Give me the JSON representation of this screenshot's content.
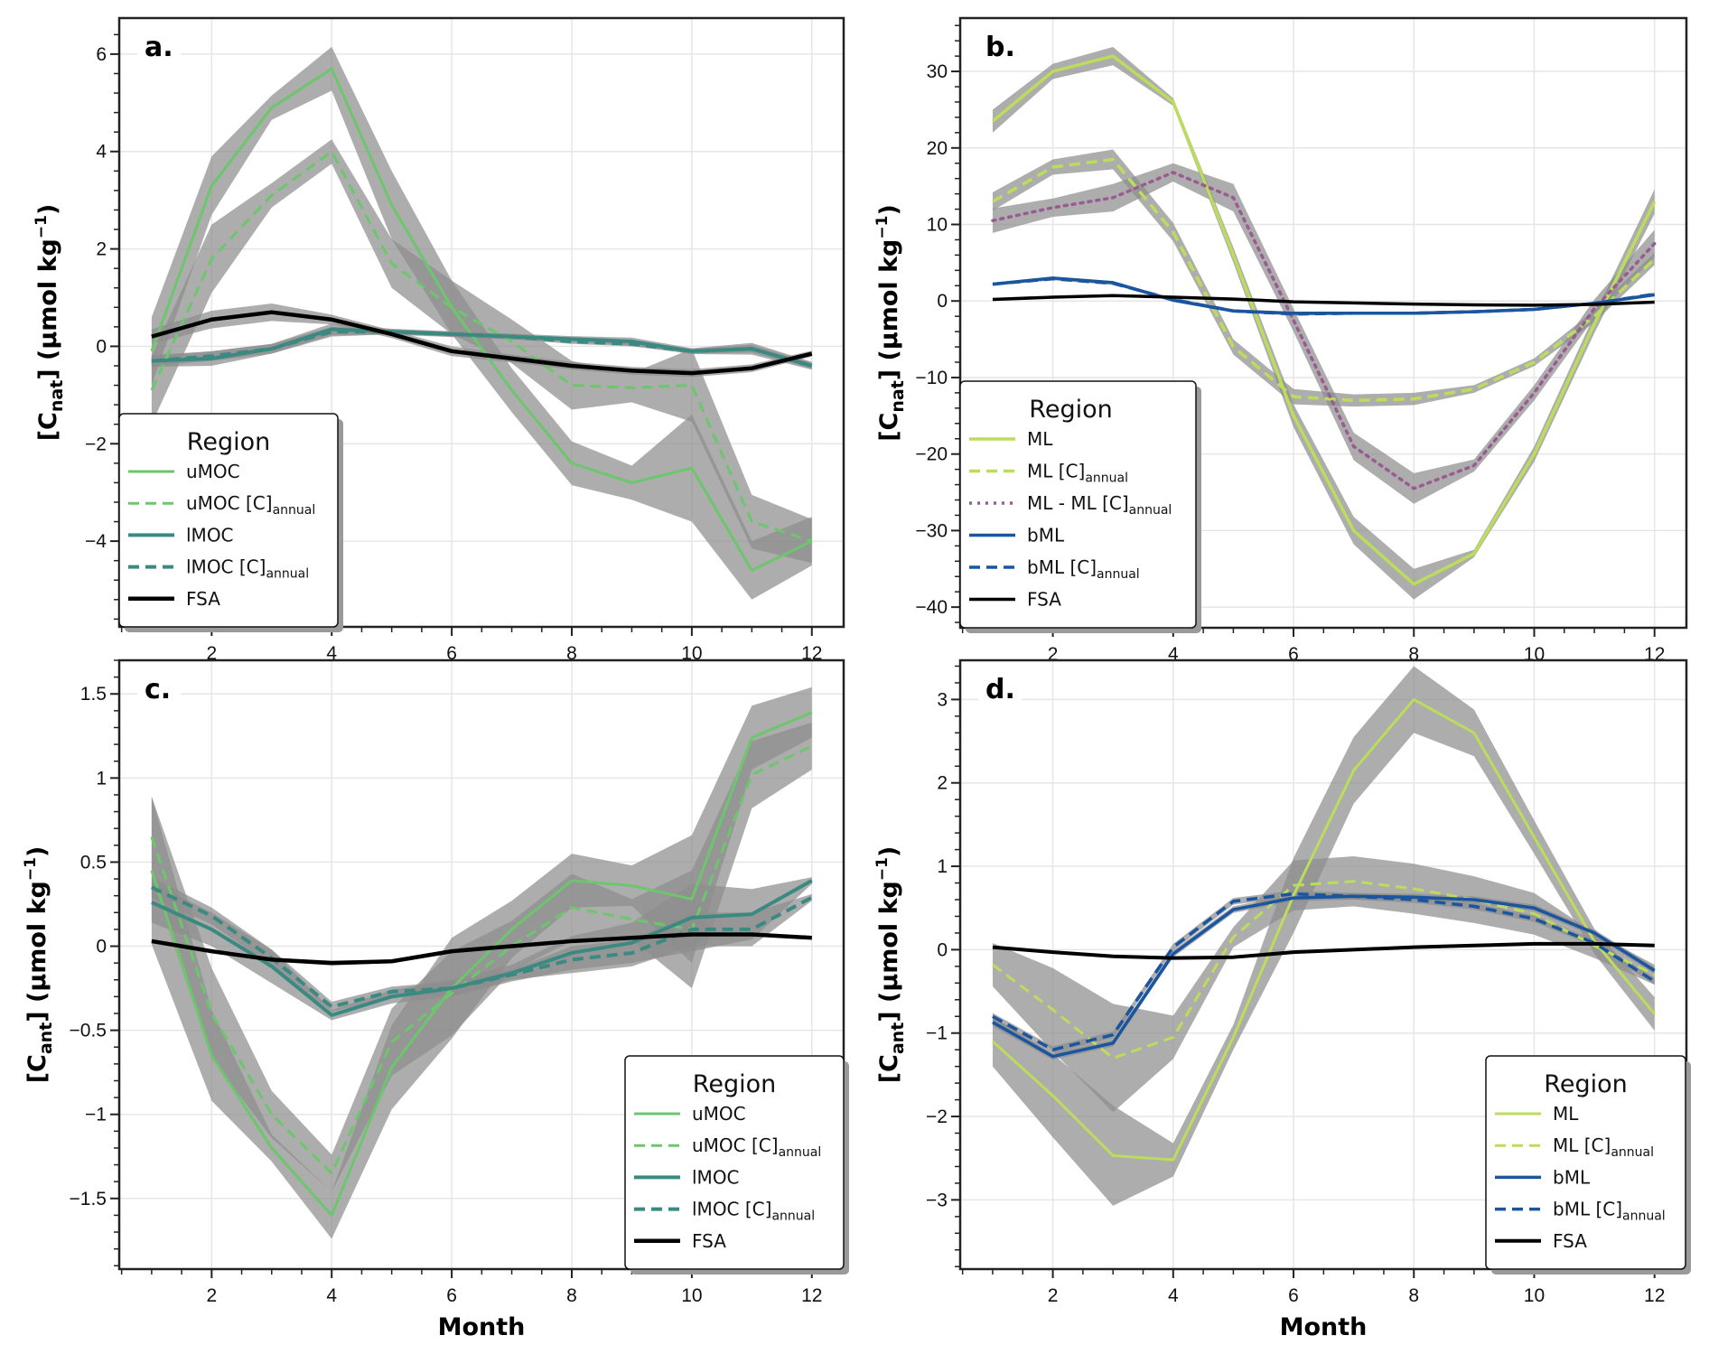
{
  "chart_data": [
    {
      "panel": "a.",
      "type": "line",
      "xlabel": "",
      "ylabel": "[C_nat] (µmol kg⁻¹)",
      "ylabel_main": "C",
      "ylabel_sub": "nat",
      "xlim": [
        0.46,
        12.53
      ],
      "ylim": [
        -5.76,
        6.74
      ],
      "xticks": [
        2,
        4,
        6,
        8,
        10,
        12
      ],
      "yticks": [
        -4,
        -2,
        0,
        2,
        4,
        6
      ],
      "ytick_labels": [
        "−4",
        "−2",
        "0",
        "2",
        "4",
        "6"
      ],
      "grid": true,
      "legend_title": "Region",
      "legend_position": "lower-left",
      "x": [
        1,
        2,
        3,
        4,
        5,
        6,
        7,
        8,
        9,
        10,
        11,
        12
      ],
      "series": [
        {
          "name": "uMOC",
          "label_main": "uMOC",
          "label_sub": "",
          "color": "#6cc66c",
          "style": "solid",
          "width": 3,
          "values": [
            -0.1,
            3.3,
            4.9,
            5.7,
            2.9,
            0.8,
            -0.9,
            -2.4,
            -2.8,
            -2.5,
            -4.6,
            -4.0
          ],
          "band": [
            0.7,
            0.6,
            0.25,
            0.45,
            0.7,
            0.55,
            0.45,
            0.45,
            0.35,
            1.1,
            0.6,
            0.5
          ]
        },
        {
          "name": "uMOC [C]annual",
          "label_main": "uMOC [C]",
          "label_sub": "annual",
          "color": "#6cc66c",
          "style": "dashed",
          "width": 3,
          "values": [
            -0.9,
            1.8,
            3.1,
            4.0,
            1.7,
            0.8,
            0.1,
            -0.8,
            -0.85,
            -0.8,
            -3.6,
            -4.0
          ],
          "band": [
            0.7,
            0.7,
            0.25,
            0.25,
            0.5,
            0.55,
            0.45,
            0.5,
            0.3,
            0.75,
            0.55,
            0.45
          ]
        },
        {
          "name": "lMOC",
          "label_main": "lMOC",
          "label_sub": "",
          "color": "#3a8a82",
          "style": "solid",
          "width": 4,
          "values": [
            -0.3,
            -0.25,
            -0.05,
            0.35,
            0.3,
            0.25,
            0.2,
            0.15,
            0.1,
            -0.1,
            -0.05,
            -0.4
          ],
          "band": [
            0.12,
            0.15,
            0.1,
            0.12,
            0.06,
            0.06,
            0.06,
            0.06,
            0.08,
            0.06,
            0.12,
            0.08
          ]
        },
        {
          "name": "lMOC [C]annual",
          "label_main": "lMOC [C]",
          "label_sub": "annual",
          "color": "#3a8a82",
          "style": "dashed",
          "width": 4,
          "values": [
            -0.3,
            -0.2,
            -0.05,
            0.3,
            0.3,
            0.25,
            0.2,
            0.1,
            0.05,
            -0.1,
            -0.05,
            -0.4
          ],
          "band": [
            0.1,
            0.1,
            0.1,
            0.1,
            0.05,
            0.05,
            0.05,
            0.05,
            0.05,
            0.05,
            0.08,
            0.06
          ]
        },
        {
          "name": "FSA",
          "label_main": "FSA",
          "label_sub": "",
          "color": "#000000",
          "style": "solid",
          "width": 4.5,
          "values": [
            0.2,
            0.55,
            0.7,
            0.55,
            0.25,
            -0.1,
            -0.25,
            -0.4,
            -0.5,
            -0.55,
            -0.45,
            -0.15
          ],
          "band": [
            0.15,
            0.18,
            0.18,
            0.1,
            0.08,
            0.1,
            0.08,
            0.08,
            0.08,
            0.08,
            0.08,
            0.06
          ]
        }
      ]
    },
    {
      "panel": "b.",
      "type": "line",
      "xlabel": "",
      "ylabel": "[C_nat] (µmol kg⁻¹)",
      "ylabel_main": "C",
      "ylabel_sub": "nat",
      "xlim": [
        0.46,
        12.53
      ],
      "ylim": [
        -42.7,
        36.97
      ],
      "xticks": [
        2,
        4,
        6,
        8,
        10,
        12
      ],
      "yticks": [
        -40,
        -30,
        -20,
        -10,
        0,
        10,
        20,
        30
      ],
      "ytick_labels": [
        "−40",
        "−30",
        "−20",
        "−10",
        "0",
        "10",
        "20",
        "30"
      ],
      "grid": true,
      "legend_title": "Region",
      "legend_position": "lower-left",
      "x": [
        1,
        2,
        3,
        4,
        5,
        6,
        7,
        8,
        9,
        10,
        11,
        12
      ],
      "series": [
        {
          "name": "ML",
          "label_main": "ML",
          "label_sub": "",
          "color": "#bcdc5c",
          "style": "solid",
          "width": 3.5,
          "values": [
            23.5,
            30,
            32,
            26,
            6,
            -15,
            -30,
            -37,
            -33,
            -20,
            -3,
            13
          ],
          "band": [
            1.5,
            1.0,
            1.2,
            0.5,
            1.0,
            1.5,
            1.8,
            2.0,
            0.5,
            1.0,
            1.2,
            1.6
          ]
        },
        {
          "name": "ML [C]annual",
          "label_main": "ML [C]",
          "label_sub": "annual",
          "color": "#bcdc5c",
          "style": "dashed",
          "width": 3.5,
          "values": [
            13,
            17.5,
            18.5,
            9,
            -6,
            -12.5,
            -13,
            -12.8,
            -11.5,
            -8,
            -2,
            5.5
          ],
          "band": [
            1.2,
            1.0,
            1.3,
            1.2,
            1.0,
            1.0,
            0.8,
            0.8,
            0.5,
            0.5,
            0.8,
            0.8
          ]
        },
        {
          "name": "ML - ML [C]annual",
          "label_main": "ML - ML [C]",
          "label_sub": "annual",
          "color": "#9a5b92",
          "style": "dotted",
          "width": 3.5,
          "values": [
            10.5,
            12.2,
            13.5,
            16.8,
            13.5,
            -2.5,
            -19,
            -24.5,
            -21.5,
            -12,
            -1,
            7.5
          ],
          "band": [
            1.6,
            1.2,
            1.8,
            1.2,
            1.8,
            1.5,
            1.8,
            2.0,
            0.8,
            1.0,
            1.2,
            1.8
          ]
        },
        {
          "name": "bML",
          "label_main": "bML",
          "label_sub": "",
          "color": "#1a55a0",
          "style": "solid",
          "width": 3.5,
          "values": [
            2.2,
            3,
            2.4,
            0.1,
            -1.3,
            -1.6,
            -1.6,
            -1.6,
            -1.4,
            -1.1,
            -0.3,
            0.8
          ],
          "band": [
            0.2,
            0.2,
            0.2,
            0.2,
            0.2,
            0.2,
            0.2,
            0.2,
            0.2,
            0.2,
            0.2,
            0.2
          ]
        },
        {
          "name": "bML [C]annual",
          "label_main": "bML [C]",
          "label_sub": "annual",
          "color": "#1a55a0",
          "style": "dashed",
          "width": 3.5,
          "values": [
            2.2,
            2.9,
            2.3,
            0.2,
            -1.3,
            -1.7,
            -1.6,
            -1.6,
            -1.4,
            -1.1,
            -0.3,
            0.9
          ],
          "band": [
            0.2,
            0.2,
            0.2,
            0.2,
            0.2,
            0.2,
            0.2,
            0.2,
            0.2,
            0.2,
            0.2,
            0.2
          ]
        },
        {
          "name": "FSA",
          "label_main": "FSA",
          "label_sub": "",
          "color": "#000000",
          "style": "solid",
          "width": 3.5,
          "values": [
            0.2,
            0.5,
            0.7,
            0.5,
            0.25,
            -0.1,
            -0.25,
            -0.4,
            -0.5,
            -0.55,
            -0.45,
            -0.15
          ],
          "band": [
            0.15,
            0.15,
            0.15,
            0.1,
            0.1,
            0.1,
            0.1,
            0.1,
            0.1,
            0.1,
            0.1,
            0.1
          ]
        }
      ]
    },
    {
      "panel": "c.",
      "type": "line",
      "xlabel": "Month",
      "ylabel": "[C_ant] (µmol kg⁻¹)",
      "ylabel_main": "C",
      "ylabel_sub": "ant",
      "xlim": [
        0.46,
        12.53
      ],
      "ylim": [
        -1.92,
        1.7
      ],
      "xticks": [
        2,
        4,
        6,
        8,
        10,
        12
      ],
      "yticks": [
        -1.5,
        -1,
        -0.5,
        0,
        0.5,
        1,
        1.5
      ],
      "ytick_labels": [
        "−1.5",
        "−1",
        "−0.5",
        "0",
        "0.5",
        "1",
        "1.5"
      ],
      "grid": true,
      "legend_title": "Region",
      "legend_position": "lower-right",
      "x": [
        1,
        2,
        3,
        4,
        5,
        6,
        7,
        8,
        9,
        10,
        11,
        12
      ],
      "series": [
        {
          "name": "uMOC",
          "label_main": "uMOC",
          "label_sub": "",
          "color": "#6cc66c",
          "style": "solid",
          "width": 3,
          "values": [
            0.45,
            -0.65,
            -1.2,
            -1.6,
            -0.72,
            -0.25,
            0.1,
            0.39,
            0.36,
            0.28,
            1.24,
            1.39
          ],
          "band": [
            0.44,
            0.27,
            0.08,
            0.14,
            0.25,
            0.3,
            0.17,
            0.16,
            0.12,
            0.38,
            0.19,
            0.15
          ]
        },
        {
          "name": "uMOC [C]annual",
          "label_main": "uMOC [C]",
          "label_sub": "annual",
          "color": "#6cc66c",
          "style": "dashed",
          "width": 3,
          "values": [
            0.65,
            -0.4,
            -1.0,
            -1.35,
            -0.57,
            -0.28,
            0.0,
            0.23,
            0.16,
            0.1,
            1.02,
            1.19
          ],
          "band": [
            0.24,
            0.27,
            0.14,
            0.11,
            0.2,
            0.25,
            0.15,
            0.2,
            0.12,
            0.35,
            0.2,
            0.14
          ]
        },
        {
          "name": "lMOC",
          "label_main": "lMOC",
          "label_sub": "",
          "color": "#3a8a82",
          "style": "solid",
          "width": 4,
          "values": [
            0.26,
            0.1,
            -0.12,
            -0.41,
            -0.3,
            -0.25,
            -0.16,
            -0.04,
            0.02,
            0.17,
            0.19,
            0.39
          ],
          "band": [
            0.12,
            0.1,
            0.1,
            0.03,
            0.04,
            0.05,
            0.05,
            0.1,
            0.12,
            0.2,
            0.15,
            0.02
          ]
        },
        {
          "name": "lMOC [C]annual",
          "label_main": "lMOC [C]",
          "label_sub": "annual",
          "color": "#3a8a82",
          "style": "dashed",
          "width": 4,
          "values": [
            0.35,
            0.18,
            -0.07,
            -0.36,
            -0.27,
            -0.25,
            -0.17,
            -0.08,
            -0.04,
            0.1,
            0.1,
            0.29
          ],
          "band": [
            0.06,
            0.05,
            0.05,
            0.03,
            0.03,
            0.04,
            0.03,
            0.08,
            0.08,
            0.1,
            0.1,
            0.02
          ]
        },
        {
          "name": "FSA",
          "label_main": "FSA",
          "label_sub": "",
          "color": "#000000",
          "style": "solid",
          "width": 4.5,
          "values": [
            0.03,
            -0.03,
            -0.08,
            -0.1,
            -0.09,
            -0.03,
            0.0,
            0.03,
            0.05,
            0.07,
            0.07,
            0.05
          ],
          "band": [
            0.01,
            0.01,
            0.01,
            0.015,
            0.01,
            0.01,
            0.01,
            0.01,
            0.01,
            0.01,
            0.01,
            0.01
          ]
        }
      ]
    },
    {
      "panel": "d.",
      "type": "line",
      "xlabel": "Month",
      "ylabel": "[C_ant] (µmol kg⁻¹)",
      "ylabel_main": "C",
      "ylabel_sub": "ant",
      "xlim": [
        0.46,
        12.53
      ],
      "ylim": [
        -3.83,
        3.47
      ],
      "xticks": [
        2,
        4,
        6,
        8,
        10,
        12
      ],
      "yticks": [
        -3,
        -2,
        -1,
        0,
        1,
        2,
        3
      ],
      "ytick_labels": [
        "−3",
        "−2",
        "−1",
        "0",
        "1",
        "2",
        "3"
      ],
      "grid": true,
      "legend_title": "Region",
      "legend_position": "lower-right",
      "x": [
        1,
        2,
        3,
        4,
        5,
        6,
        7,
        8,
        9,
        10,
        11,
        12
      ],
      "series": [
        {
          "name": "ML",
          "label_main": "ML",
          "label_sub": "",
          "color": "#bcdc5c",
          "style": "solid",
          "width": 3,
          "values": [
            -1.1,
            -1.75,
            -2.47,
            -2.52,
            -1.05,
            0.65,
            2.15,
            3.0,
            2.6,
            1.35,
            0.1,
            -0.77
          ],
          "band": [
            0.3,
            0.5,
            0.6,
            0.2,
            0.15,
            0.45,
            0.4,
            0.4,
            0.28,
            0.2,
            0.15,
            0.2
          ]
        },
        {
          "name": "ML [C]annual",
          "label_main": "ML [C]",
          "label_sub": "annual",
          "color": "#bcdc5c",
          "style": "dashed",
          "width": 3,
          "values": [
            -0.18,
            -0.72,
            -1.3,
            -1.05,
            0.15,
            0.77,
            0.82,
            0.73,
            0.6,
            0.43,
            0.05,
            -0.3
          ],
          "band": [
            0.26,
            0.5,
            0.65,
            0.26,
            0.12,
            0.3,
            0.3,
            0.3,
            0.28,
            0.25,
            0.15,
            0.12
          ]
        },
        {
          "name": "bML",
          "label_main": "bML",
          "label_sub": "",
          "color": "#1a55a0",
          "style": "solid",
          "width": 3.5,
          "values": [
            -0.87,
            -1.28,
            -1.12,
            -0.05,
            0.48,
            0.62,
            0.64,
            0.63,
            0.6,
            0.5,
            0.2,
            -0.25
          ],
          "band": [
            0.05,
            0.04,
            0.04,
            0.04,
            0.04,
            0.04,
            0.04,
            0.04,
            0.04,
            0.04,
            0.04,
            0.04
          ]
        },
        {
          "name": "bML [C]annual",
          "label_main": "bML [C]",
          "label_sub": "annual",
          "color": "#1a55a0",
          "style": "dashed",
          "width": 3.5,
          "values": [
            -0.8,
            -1.2,
            -1.02,
            0.03,
            0.58,
            0.67,
            0.64,
            0.6,
            0.52,
            0.37,
            0.08,
            -0.38
          ],
          "band": [
            0.04,
            0.04,
            0.04,
            0.04,
            0.04,
            0.04,
            0.04,
            0.04,
            0.04,
            0.04,
            0.04,
            0.04
          ]
        },
        {
          "name": "FSA",
          "label_main": "FSA",
          "label_sub": "",
          "color": "#000000",
          "style": "solid",
          "width": 4,
          "values": [
            0.03,
            -0.03,
            -0.08,
            -0.1,
            -0.09,
            -0.03,
            0.0,
            0.03,
            0.05,
            0.07,
            0.07,
            0.05
          ],
          "band": [
            0.01,
            0.01,
            0.01,
            0.015,
            0.01,
            0.01,
            0.01,
            0.01,
            0.01,
            0.01,
            0.01,
            0.01
          ]
        }
      ]
    }
  ],
  "figure": {
    "xlabel_bottom": "Month",
    "ylabel_unit": "(µmol kg",
    "ylabel_exp": "−1",
    "band_color": "#8e8e8e",
    "grid_color": "#e6e6e6"
  }
}
